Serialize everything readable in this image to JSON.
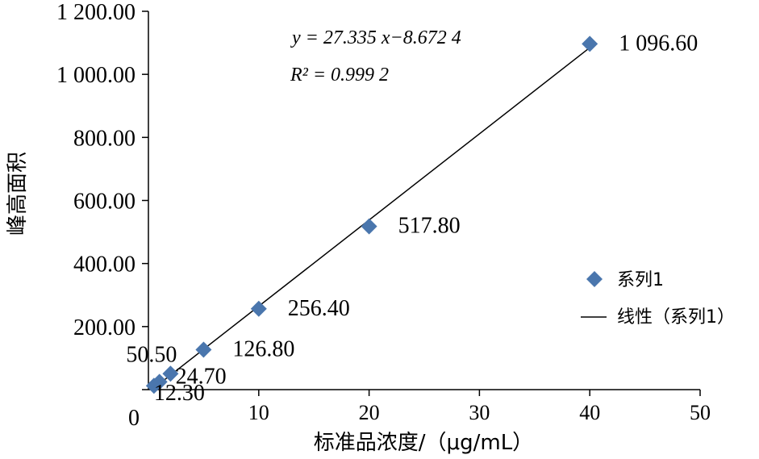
{
  "chart_data": {
    "type": "scatter",
    "title": "",
    "xlabel": "标准品浓度/（μg/mL）",
    "ylabel": "峰高面积",
    "xlim": [
      0,
      50
    ],
    "ylim": [
      0,
      1200
    ],
    "x_ticks": [
      "0",
      "10",
      "20",
      "30",
      "40",
      "50"
    ],
    "y_ticks": [
      "",
      "200.00",
      "400.00",
      "600.00",
      "800.00",
      "1 000.00",
      "1 200.00"
    ],
    "series": [
      {
        "name": "系列1",
        "x": [
          0.5,
          1,
          2,
          5,
          10,
          20,
          40
        ],
        "y": [
          12.3,
          24.7,
          50.5,
          126.8,
          256.4,
          517.8,
          1096.6
        ],
        "labels": [
          "12.30",
          "24.70",
          "50.50",
          "126.80",
          "256.40",
          "517.80",
          "1 096.60"
        ],
        "color": "#4a76ad"
      }
    ],
    "trendline": {
      "name": "线性(系列1)",
      "slope": 27.335,
      "intercept": -8.6724,
      "x_range": [
        0.5,
        40
      ],
      "color": "#000000"
    },
    "equation": {
      "lines": [
        "y = 27.335 x−8.672 4",
        "R² = 0.999 2"
      ]
    },
    "legend": {
      "position": "right",
      "items": [
        "系列1",
        "线性（系列1）"
      ]
    },
    "grid": false
  }
}
